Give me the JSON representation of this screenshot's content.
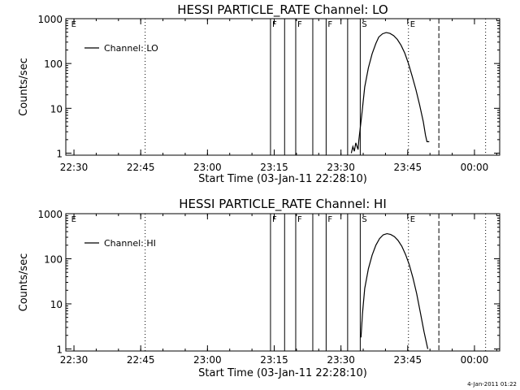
{
  "chart_data": [
    {
      "type": "line",
      "title": "HESSI PARTICLE_RATE Channel: LO",
      "xlabel": "Start Time (03-Jan-11 22:28:10)",
      "ylabel": "Counts/sec",
      "x_unit": "time (HH:MM, 03-Jan-11)",
      "xlim": [
        "22:28:10",
        "00:05:40"
      ],
      "ylim": [
        0.9,
        1000
      ],
      "y_scale": "log",
      "xticks": [
        "22:30",
        "22:45",
        "23:00",
        "23:15",
        "23:30",
        "23:45",
        "00:00"
      ],
      "yticks": [
        "1",
        "10",
        "100",
        "1000"
      ],
      "grid": false,
      "legend": {
        "position": "top-left",
        "entries": [
          "Channel: LO"
        ]
      },
      "series": [
        {
          "name": "Channel: LO",
          "x": [
            "23:32:20",
            "23:32:40",
            "23:33:00",
            "23:33:20",
            "23:33:50",
            "23:34:00",
            "23:34:40",
            "23:35:20",
            "23:36:10",
            "23:37:00",
            "23:37:50",
            "23:38:30",
            "23:39:20",
            "23:40:10",
            "23:41:00",
            "23:41:50",
            "23:42:40",
            "23:43:30",
            "23:44:20",
            "23:45:10",
            "23:46:00",
            "23:46:50",
            "23:47:40",
            "23:48:30",
            "23:49:00",
            "23:49:20",
            "23:49:50"
          ],
          "y": [
            1.0,
            1.4,
            1.1,
            1.7,
            1.2,
            1.9,
            7,
            30,
            80,
            165,
            280,
            390,
            460,
            490,
            470,
            420,
            345,
            255,
            170,
            100,
            52,
            26,
            12,
            5,
            2.5,
            1.8,
            1.8
          ]
        }
      ],
      "markers": [
        {
          "label": "E",
          "time": "22:29:00",
          "line": "none"
        },
        {
          "label": "",
          "time": "22:46:00",
          "line": "dotted"
        },
        {
          "label": "F",
          "time": "23:14:10",
          "line": "solid"
        },
        {
          "label": "",
          "time": "23:17:20",
          "line": "solid"
        },
        {
          "label": "F",
          "time": "23:19:50",
          "line": "solid"
        },
        {
          "label": "",
          "time": "23:23:40",
          "line": "solid"
        },
        {
          "label": "F",
          "time": "23:26:40",
          "line": "solid"
        },
        {
          "label": "",
          "time": "23:31:30",
          "line": "solid"
        },
        {
          "label": "S",
          "time": "23:34:20",
          "line": "solid"
        },
        {
          "label": "E",
          "time": "23:45:10",
          "line": "dotted"
        },
        {
          "label": "",
          "time": "23:52:00",
          "line": "dashed"
        },
        {
          "label": "",
          "time": "24:02:30",
          "line": "dotted"
        }
      ]
    },
    {
      "type": "line",
      "title": "HESSI PARTICLE_RATE Channel: HI",
      "xlabel": "Start Time (03-Jan-11 22:28:10)",
      "ylabel": "Counts/sec",
      "x_unit": "time (HH:MM, 03-Jan-11)",
      "xlim": [
        "22:28:10",
        "00:05:40"
      ],
      "ylim": [
        0.9,
        1000
      ],
      "y_scale": "log",
      "xticks": [
        "22:30",
        "22:45",
        "23:00",
        "23:15",
        "23:30",
        "23:45",
        "00:00"
      ],
      "yticks": [
        "1",
        "10",
        "100",
        "1000"
      ],
      "grid": false,
      "legend": {
        "position": "top-left",
        "entries": [
          "Channel: HI"
        ]
      },
      "series": [
        {
          "name": "Channel: HI",
          "x": [
            "23:34:30",
            "23:34:50",
            "23:35:20",
            "23:36:10",
            "23:37:00",
            "23:37:50",
            "23:38:40",
            "23:39:30",
            "23:40:20",
            "23:41:10",
            "23:42:00",
            "23:42:50",
            "23:43:40",
            "23:44:30",
            "23:45:20",
            "23:46:10",
            "23:47:00",
            "23:47:50",
            "23:48:40",
            "23:49:30"
          ],
          "y": [
            1.8,
            6,
            22,
            60,
            120,
            200,
            280,
            340,
            360,
            345,
            310,
            255,
            190,
            125,
            75,
            38,
            17,
            6.5,
            2.4,
            1.0
          ]
        }
      ],
      "markers": [
        {
          "label": "E",
          "time": "22:29:00",
          "line": "none"
        },
        {
          "label": "",
          "time": "22:46:00",
          "line": "dotted"
        },
        {
          "label": "F",
          "time": "23:14:10",
          "line": "solid"
        },
        {
          "label": "",
          "time": "23:17:20",
          "line": "solid"
        },
        {
          "label": "F",
          "time": "23:19:50",
          "line": "solid"
        },
        {
          "label": "",
          "time": "23:23:40",
          "line": "solid"
        },
        {
          "label": "F",
          "time": "23:26:40",
          "line": "solid"
        },
        {
          "label": "",
          "time": "23:31:30",
          "line": "solid"
        },
        {
          "label": "S",
          "time": "23:34:20",
          "line": "solid"
        },
        {
          "label": "E",
          "time": "23:45:10",
          "line": "dotted"
        },
        {
          "label": "",
          "time": "23:52:00",
          "line": "dashed"
        },
        {
          "label": "",
          "time": "24:02:30",
          "line": "dotted"
        }
      ]
    }
  ],
  "footer": {
    "timestamp": "4-Jan-2011 01:22"
  }
}
